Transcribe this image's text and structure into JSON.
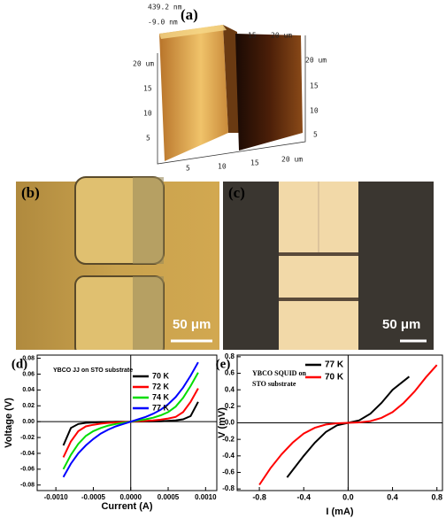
{
  "afm": {
    "label": "(a)",
    "z_max": "439.2 nm",
    "z_min": "-9.0 nm",
    "top_axis": [
      "15",
      "20 um"
    ],
    "left_axis": [
      "20 um",
      "15",
      "10",
      "5"
    ],
    "right_axis": [
      "20 um",
      "15",
      "10",
      "5"
    ],
    "bottom_axis": [
      "5",
      "10",
      "15",
      "20 um"
    ]
  },
  "micrograph_b": {
    "label": "(b)",
    "scale_bar": "50 μm"
  },
  "micrograph_c": {
    "label": "(c)",
    "scale_bar": "50 μm"
  },
  "chart_data": [
    {
      "type": "line",
      "panel_label": "(d)",
      "annotation": [
        "YBCO JJ on STO substrate"
      ],
      "x_label": "Current (A)",
      "y_label": "Voltage (V)",
      "xlim": [
        -0.00125,
        0.00115
      ],
      "ylim": [
        -0.087,
        0.084
      ],
      "xticks": [
        {
          "value": -0.001,
          "label": "-0.0010"
        },
        {
          "value": -0.0005,
          "label": "-0.0005"
        },
        {
          "value": 0,
          "label": "0.0000"
        },
        {
          "value": 0.0005,
          "label": "0.0005"
        },
        {
          "value": 0.001,
          "label": "0.0010"
        }
      ],
      "yticks": [
        -0.08,
        -0.06,
        -0.04,
        -0.02,
        {
          "value": 0,
          "label": "0.00"
        },
        0.02,
        0.04,
        0.06,
        0.08
      ],
      "series": [
        {
          "name": "70 K",
          "color": "#000000",
          "x": [
            -0.0009,
            -0.0008,
            -0.0007,
            -0.0006,
            -0.0005,
            -0.0004,
            -0.0003,
            -0.0002,
            -0.0001,
            0,
            0.0001,
            0.0002,
            0.0003,
            0.0004,
            0.0005,
            0.0006,
            0.0007,
            0.0008,
            0.0009
          ],
          "values": [
            -0.03,
            -0.008,
            -0.003,
            -0.0015,
            -0.001,
            -0.0005,
            -0.0003,
            -0.0002,
            -0.0001,
            0,
            0.0001,
            0.0002,
            0.0003,
            0.0005,
            0.001,
            0.0015,
            0.003,
            0.007,
            0.025
          ]
        },
        {
          "name": "72 K",
          "color": "#ff0000",
          "x": [
            -0.0009,
            -0.0008,
            -0.0007,
            -0.0006,
            -0.0005,
            -0.0004,
            -0.0003,
            -0.0002,
            -0.0001,
            0,
            0.0001,
            0.0002,
            0.0003,
            0.0004,
            0.0005,
            0.0006,
            0.0007,
            0.0008,
            0.0009
          ],
          "values": [
            -0.045,
            -0.025,
            -0.012,
            -0.006,
            -0.004,
            -0.0025,
            -0.0015,
            -0.001,
            -0.0005,
            0,
            0.0005,
            0.001,
            0.0015,
            0.0025,
            0.004,
            0.006,
            0.012,
            0.025,
            0.042
          ]
        },
        {
          "name": "74 K",
          "color": "#00dd00",
          "x": [
            -0.0009,
            -0.0008,
            -0.0007,
            -0.0006,
            -0.0005,
            -0.0004,
            -0.0003,
            -0.0002,
            -0.0001,
            0,
            0.0001,
            0.0002,
            0.0003,
            0.0004,
            0.0005,
            0.0006,
            0.0007,
            0.0008,
            0.0009
          ],
          "values": [
            -0.06,
            -0.042,
            -0.028,
            -0.018,
            -0.012,
            -0.008,
            -0.005,
            -0.003,
            -0.0015,
            0,
            0.0015,
            0.003,
            0.005,
            0.008,
            0.012,
            0.019,
            0.03,
            0.045,
            0.062
          ]
        },
        {
          "name": "77 K",
          "color": "#0000ff",
          "x": [
            -0.0009,
            -0.0008,
            -0.0007,
            -0.0006,
            -0.0005,
            -0.0004,
            -0.0003,
            -0.0002,
            -0.0001,
            0,
            0.0001,
            0.0002,
            0.0003,
            0.0004,
            0.0005,
            0.0006,
            0.0007,
            0.0008,
            0.0009
          ],
          "values": [
            -0.07,
            -0.053,
            -0.04,
            -0.03,
            -0.022,
            -0.015,
            -0.01,
            -0.006,
            -0.003,
            0,
            0.003,
            0.006,
            0.01,
            0.015,
            0.022,
            0.031,
            0.043,
            0.058,
            0.075
          ]
        }
      ]
    },
    {
      "type": "line",
      "panel_label": "(e)",
      "annotation": [
        "YBCO SQUID on",
        "STO substrate"
      ],
      "x_label": "I (mA)",
      "y_label": "V (mV)",
      "xlim": [
        -1.0,
        0.85
      ],
      "ylim": [
        -0.82,
        0.82
      ],
      "xticks": [
        -0.8,
        -0.4,
        {
          "value": 0,
          "label": "0.0"
        },
        0.4,
        0.8
      ],
      "yticks": [
        -0.8,
        -0.6,
        -0.4,
        -0.2,
        {
          "value": 0,
          "label": "0.0"
        },
        0.2,
        0.4,
        0.6,
        0.8
      ],
      "series": [
        {
          "name": "77 K",
          "color": "#000000",
          "x": [
            -0.55,
            -0.4,
            -0.3,
            -0.2,
            -0.1,
            0,
            0.1,
            0.2,
            0.3,
            0.4,
            0.55
          ],
          "values": [
            -0.66,
            -0.4,
            -0.24,
            -0.11,
            -0.03,
            0,
            0.03,
            0.11,
            0.24,
            0.4,
            0.56
          ]
        },
        {
          "name": "70 K",
          "color": "#ff0000",
          "x": [
            -0.8,
            -0.7,
            -0.6,
            -0.5,
            -0.4,
            -0.3,
            -0.2,
            -0.1,
            0,
            0.1,
            0.2,
            0.3,
            0.4,
            0.5,
            0.6,
            0.7,
            0.8
          ],
          "values": [
            -0.75,
            -0.55,
            -0.38,
            -0.24,
            -0.13,
            -0.06,
            -0.02,
            -0.005,
            0,
            0.005,
            0.02,
            0.06,
            0.13,
            0.24,
            0.38,
            0.55,
            0.7
          ]
        }
      ]
    }
  ]
}
